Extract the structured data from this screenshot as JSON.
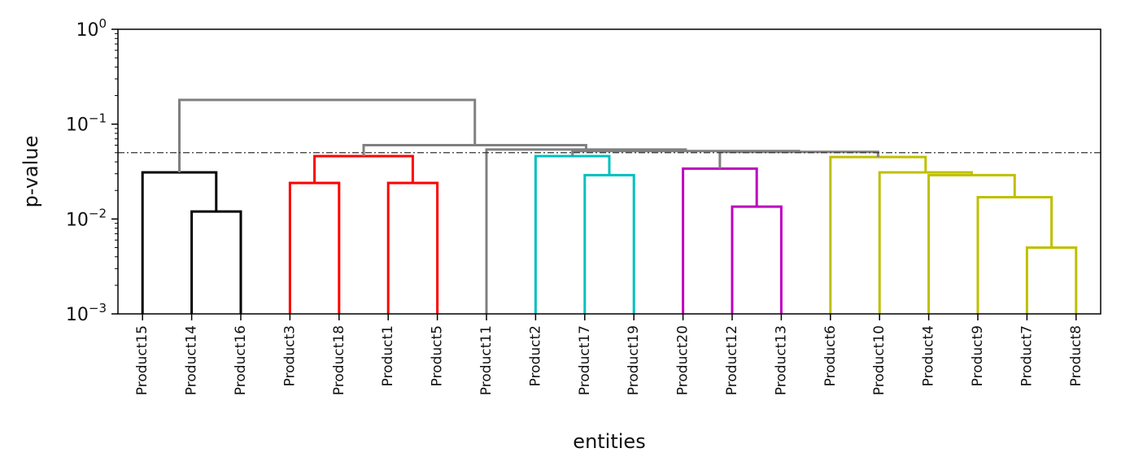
{
  "chart_data": {
    "type": "dendrogram",
    "xlabel": "entities",
    "ylabel": "p-value",
    "yscale": "log",
    "ylim": [
      0.001,
      1
    ],
    "yticks": [
      {
        "value": 0.001,
        "base": "10",
        "exp": "−3"
      },
      {
        "value": 0.01,
        "base": "10",
        "exp": "−2"
      },
      {
        "value": 0.1,
        "base": "10",
        "exp": "−1"
      },
      {
        "value": 1,
        "base": "10",
        "exp": "0"
      }
    ],
    "threshold": 0.05,
    "categories": [
      "Product15",
      "Product14",
      "Product16",
      "Product3",
      "Product18",
      "Product1",
      "Product5",
      "Product11",
      "Product2",
      "Product17",
      "Product19",
      "Product20",
      "Product12",
      "Product13",
      "Product6",
      "Product10",
      "Product4",
      "Product9",
      "Product7",
      "Product8"
    ],
    "colors": {
      "black": "#000000",
      "red": "#ff0000",
      "cyan": "#00bfbf",
      "magenta": "#bf00bf",
      "olive": "#bfbf00",
      "gray": "#808080"
    },
    "merges": [
      {
        "left": "Product14",
        "right": "Product16",
        "height": 0.012,
        "color": "black"
      },
      {
        "left": "Product15",
        "right": 0,
        "height": 0.031,
        "color": "black"
      },
      {
        "left": "Product3",
        "right": "Product18",
        "height": 0.024,
        "color": "red"
      },
      {
        "left": "Product1",
        "right": "Product5",
        "height": 0.024,
        "color": "red"
      },
      {
        "left": 2,
        "right": 3,
        "height": 0.046,
        "color": "red"
      },
      {
        "left": "Product17",
        "right": "Product19",
        "height": 0.029,
        "color": "cyan"
      },
      {
        "left": "Product2",
        "right": 5,
        "height": 0.046,
        "color": "cyan"
      },
      {
        "left": "Product12",
        "right": "Product13",
        "height": 0.0135,
        "color": "magenta"
      },
      {
        "left": "Product20",
        "right": 7,
        "height": 0.034,
        "color": "magenta"
      },
      {
        "left": "Product7",
        "right": "Product8",
        "height": 0.005,
        "color": "olive"
      },
      {
        "left": "Product9",
        "right": 9,
        "height": 0.017,
        "color": "olive"
      },
      {
        "left": "Product4",
        "right": 10,
        "height": 0.029,
        "color": "olive"
      },
      {
        "left": "Product10",
        "right": 11,
        "height": 0.031,
        "color": "olive"
      },
      {
        "left": "Product6",
        "right": 12,
        "height": 0.045,
        "color": "olive"
      },
      {
        "left": 8,
        "right": 13,
        "height": 0.051,
        "color": "gray"
      },
      {
        "left": 6,
        "right": 14,
        "height": 0.052,
        "color": "gray"
      },
      {
        "left": "Product11",
        "right": 15,
        "height": 0.054,
        "color": "gray"
      },
      {
        "left": 4,
        "right": 16,
        "height": 0.06,
        "color": "gray"
      },
      {
        "left": 1,
        "right": 17,
        "height": 0.18,
        "color": "gray"
      }
    ]
  }
}
